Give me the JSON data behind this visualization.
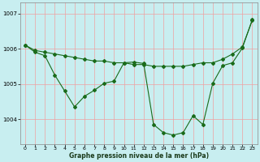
{
  "background_color": "#c8eef0",
  "grid_color_v": "#f0a0a0",
  "grid_color_h": "#d8f0f0",
  "line_color": "#1a6b1a",
  "xlabel": "Graphe pression niveau de la mer (hPa)",
  "ylabel_ticks": [
    1004,
    1005,
    1006,
    1007
  ],
  "xlim": [
    -0.5,
    23.5
  ],
  "ylim": [
    1003.3,
    1007.3
  ],
  "xticks": [
    0,
    1,
    2,
    3,
    4,
    5,
    6,
    7,
    8,
    9,
    10,
    11,
    12,
    13,
    14,
    15,
    16,
    17,
    18,
    19,
    20,
    21,
    22,
    23
  ],
  "line1_x": [
    0,
    1,
    2,
    3,
    4,
    5,
    6,
    7,
    8,
    9,
    10,
    11,
    12,
    13,
    14,
    15,
    16,
    17,
    18,
    19,
    20,
    21,
    22,
    23
  ],
  "line1_y": [
    1006.1,
    1005.95,
    1005.9,
    1005.85,
    1005.8,
    1005.75,
    1005.7,
    1005.65,
    1005.65,
    1005.6,
    1005.6,
    1005.55,
    1005.55,
    1005.5,
    1005.5,
    1005.5,
    1005.5,
    1005.55,
    1005.6,
    1005.6,
    1005.7,
    1005.85,
    1006.05,
    1006.8
  ],
  "line2_x": [
    0,
    1,
    2,
    3,
    4,
    5,
    6,
    7,
    8,
    9,
    10,
    11,
    12,
    13,
    14,
    15,
    16,
    17,
    18,
    19,
    20,
    21,
    22,
    23
  ],
  "line2_y": [
    1006.1,
    1005.9,
    1005.8,
    1005.25,
    1004.8,
    1004.35,
    1004.65,
    1004.82,
    1005.02,
    1005.08,
    1005.6,
    1005.62,
    1005.58,
    1003.85,
    1003.62,
    1003.55,
    1003.62,
    1004.1,
    1003.85,
    1005.02,
    1005.52,
    1005.6,
    1006.02,
    1006.82
  ]
}
